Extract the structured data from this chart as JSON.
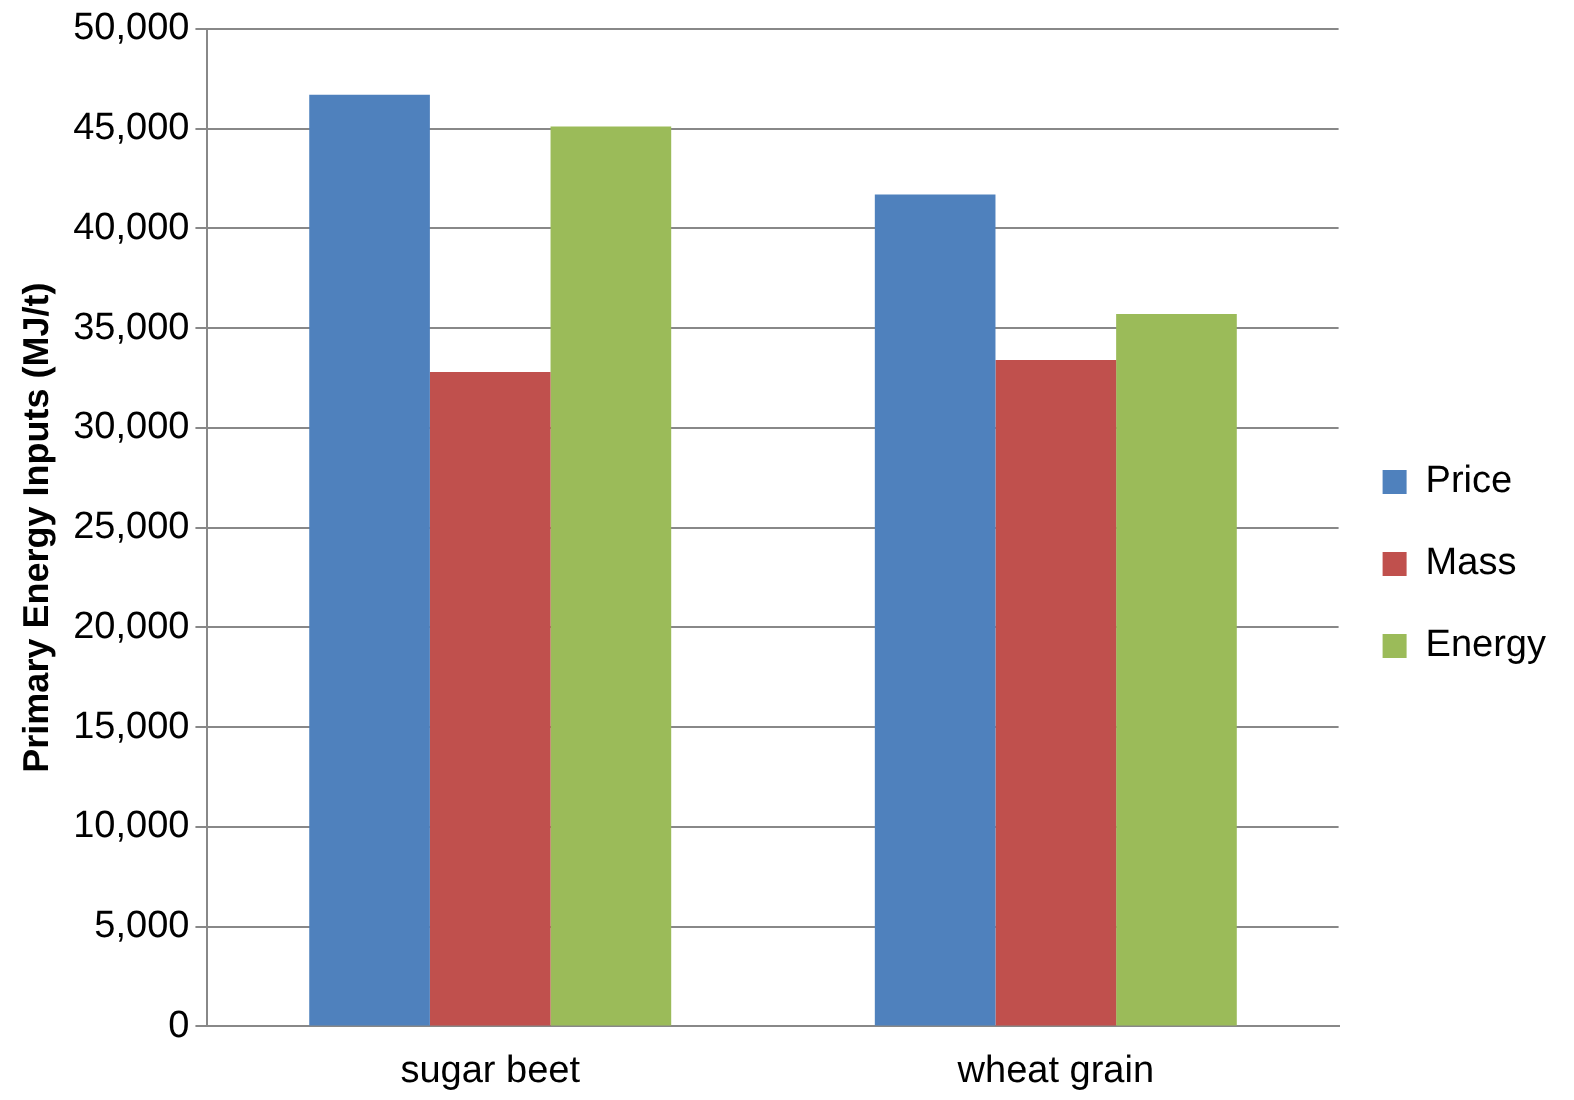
{
  "chart_data": {
    "type": "bar",
    "ylabel": "Primary Energy Inputs (MJ/t)",
    "categories": [
      "sugar beet",
      "wheat grain"
    ],
    "series": [
      {
        "name": "Price",
        "color": "#4f81bd",
        "values": [
          46700,
          41700
        ]
      },
      {
        "name": "Mass",
        "color": "#c0504d",
        "values": [
          32800,
          33400
        ]
      },
      {
        "name": "Energy",
        "color": "#9bbb59",
        "values": [
          45100,
          35700
        ]
      }
    ],
    "ylim": [
      0,
      50000
    ],
    "yticks": [
      0,
      {
        "value": 5000,
        "label": "5,000"
      },
      {
        "value": 10000,
        "label": "10,000"
      },
      {
        "value": 15000,
        "label": "15,000"
      },
      {
        "value": 20000,
        "label": "20,000"
      },
      {
        "value": 25000,
        "label": "25,000"
      },
      {
        "value": 30000,
        "label": "30,000"
      },
      {
        "value": 35000,
        "label": "35,000"
      },
      {
        "value": 40000,
        "label": "40,000"
      },
      {
        "value": 45000,
        "label": "45,000"
      },
      {
        "value": 50000,
        "label": "50,000"
      }
    ],
    "grid": "y",
    "legend": "right"
  }
}
